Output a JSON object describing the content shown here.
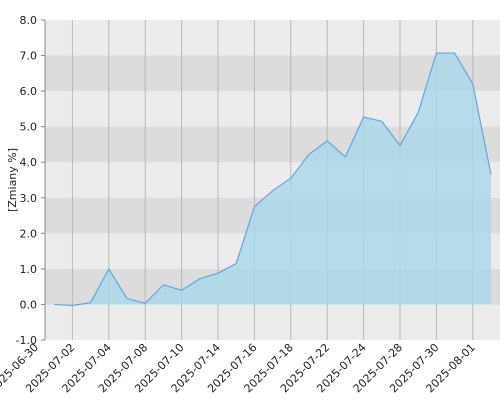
{
  "chart_data": {
    "type": "area",
    "y_label": "[Zmiany %]",
    "categories": [
      "2025-06-30",
      null,
      "2025-07-02",
      null,
      "2025-07-04",
      null,
      "2025-07-08",
      null,
      "2025-07-10",
      null,
      "2025-07-14",
      null,
      "2025-07-16",
      null,
      "2025-07-18",
      null,
      "2025-07-22",
      null,
      "2025-07-24",
      null,
      "2025-07-28",
      null,
      "2025-07-30",
      null,
      "2025-08-01",
      null
    ],
    "values": [
      null,
      0.0,
      -0.03,
      0.05,
      1.0,
      0.17,
      0.03,
      0.55,
      0.4,
      0.72,
      0.88,
      1.15,
      2.75,
      3.2,
      3.55,
      4.22,
      4.6,
      4.15,
      5.27,
      5.15,
      4.47,
      5.4,
      7.07,
      7.07,
      6.2,
      3.65
    ],
    "color": "#5ba8e0",
    "fill": "#a9d8ec",
    "ylim": [
      -1,
      8
    ],
    "yticks": [
      {
        "value": -1,
        "label": "-1.0"
      },
      {
        "value": 0,
        "label": "0.0"
      },
      {
        "value": 1,
        "label": "1.0"
      },
      {
        "value": 2,
        "label": "2.0"
      },
      {
        "value": 3,
        "label": "3.0"
      },
      {
        "value": 4,
        "label": "4.0"
      },
      {
        "value": 5,
        "label": "5.0"
      },
      {
        "value": 6,
        "label": "6.0"
      },
      {
        "value": 7,
        "label": "7.0"
      },
      {
        "value": 8,
        "label": "8.0"
      }
    ],
    "grid": true
  }
}
